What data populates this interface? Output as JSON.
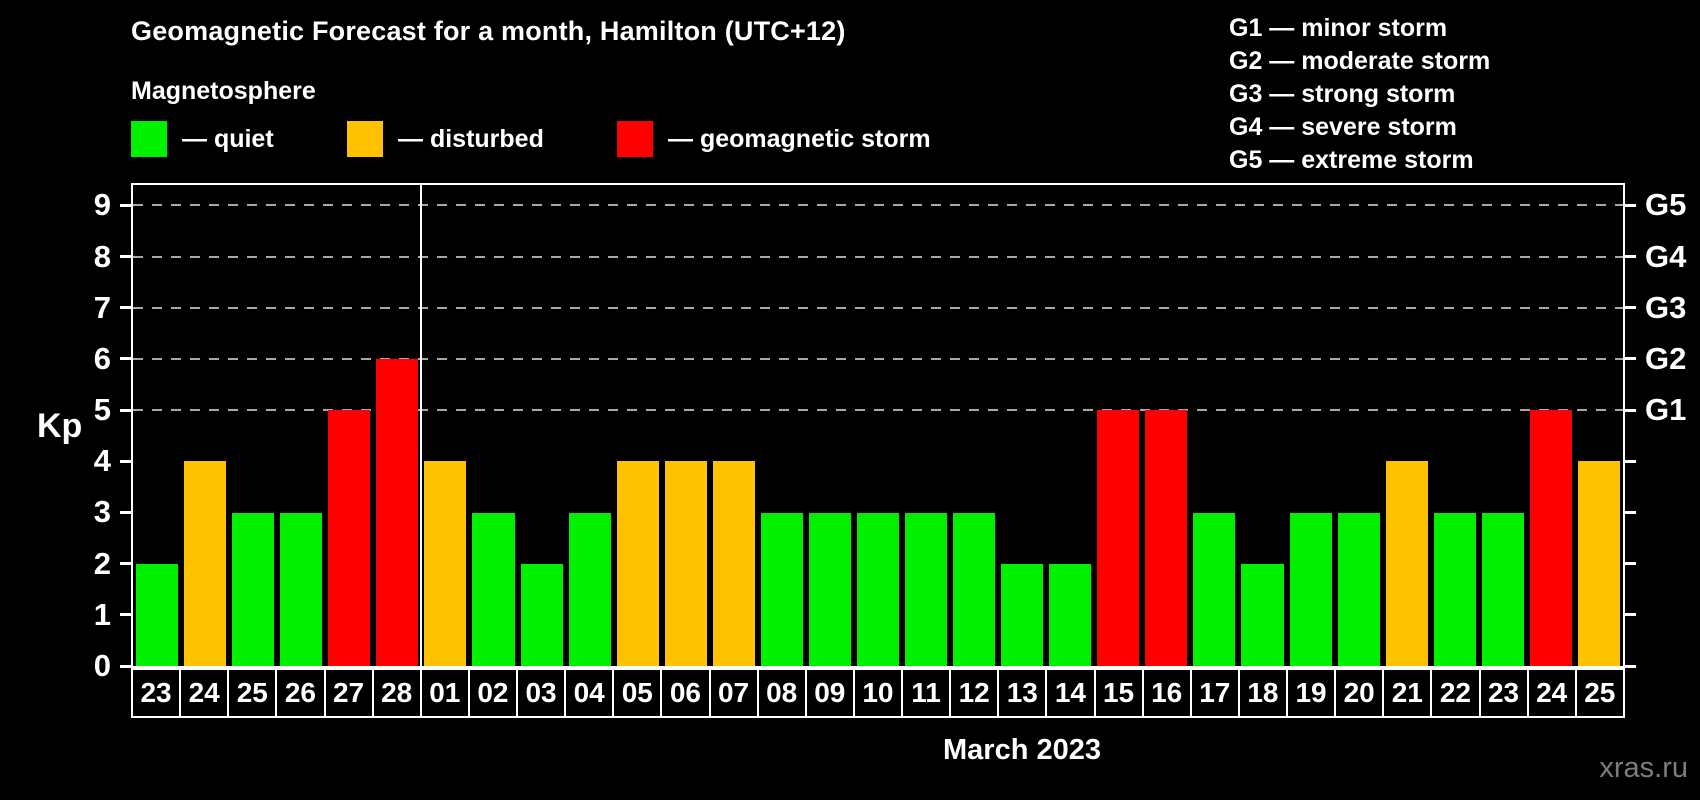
{
  "title": "Geomagnetic Forecast for a month, Hamilton (UTC+12)",
  "subtitle": "Magnetosphere",
  "legend": {
    "items": [
      {
        "label": "— quiet",
        "status": "quiet",
        "color": "#00f000"
      },
      {
        "label": "— disturbed",
        "status": "disturbed",
        "color": "#ffc200"
      },
      {
        "label": "— geomagnetic storm",
        "status": "storm",
        "color": "#ff0000"
      }
    ]
  },
  "g_legend": [
    "G1 — minor storm",
    "G2 — moderate storm",
    "G3 — strong storm",
    "G4 — severe storm",
    "G5 — extreme storm"
  ],
  "watermark": "xras.ru",
  "chart_data": {
    "type": "bar",
    "title": "Geomagnetic Forecast for a month, Hamilton (UTC+12)",
    "subtitle": "Magnetosphere",
    "ylabel": "Kp",
    "xlabel": "March 2023",
    "ylim": [
      0,
      9.4
    ],
    "yticks": [
      0,
      1,
      2,
      3,
      4,
      5,
      6,
      7,
      8,
      9
    ],
    "gridlines_at": [
      5,
      6,
      7,
      8,
      9
    ],
    "grid": "dashed horizontal at Kp 5-9 only",
    "right_axis_labels": [
      {
        "value": 5,
        "label": "G1"
      },
      {
        "value": 6,
        "label": "G2"
      },
      {
        "value": 7,
        "label": "G3"
      },
      {
        "value": 8,
        "label": "G4"
      },
      {
        "value": 9,
        "label": "G5"
      }
    ],
    "legend_position": "top",
    "divider_after_index": 5,
    "categories": [
      "23",
      "24",
      "25",
      "26",
      "27",
      "28",
      "01",
      "02",
      "03",
      "04",
      "05",
      "06",
      "07",
      "08",
      "09",
      "10",
      "11",
      "12",
      "13",
      "14",
      "15",
      "16",
      "17",
      "18",
      "19",
      "20",
      "21",
      "22",
      "23",
      "24",
      "25"
    ],
    "values": [
      2,
      4,
      3,
      3,
      5,
      6,
      4,
      3,
      2,
      3,
      4,
      4,
      4,
      3,
      3,
      3,
      3,
      3,
      2,
      2,
      5,
      5,
      3,
      2,
      3,
      3,
      4,
      3,
      3,
      5,
      4
    ],
    "statuses": [
      "quiet",
      "disturbed",
      "quiet",
      "quiet",
      "storm",
      "storm",
      "disturbed",
      "quiet",
      "quiet",
      "quiet",
      "disturbed",
      "disturbed",
      "disturbed",
      "quiet",
      "quiet",
      "quiet",
      "quiet",
      "quiet",
      "quiet",
      "quiet",
      "storm",
      "storm",
      "quiet",
      "quiet",
      "quiet",
      "quiet",
      "disturbed",
      "quiet",
      "quiet",
      "storm",
      "disturbed"
    ],
    "status_colors": {
      "quiet": "#00f000",
      "disturbed": "#ffc200",
      "storm": "#ff0000"
    }
  }
}
